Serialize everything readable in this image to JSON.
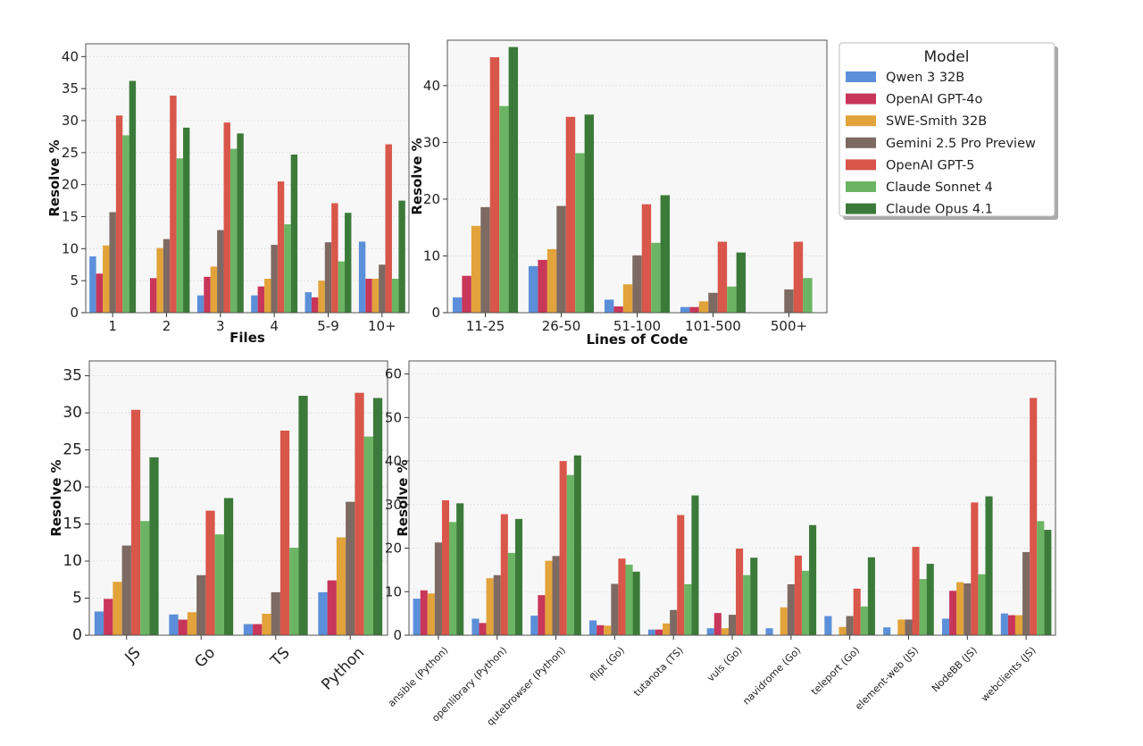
{
  "legend": {
    "title": "Model",
    "placement": "top-right",
    "series": [
      {
        "name": "Qwen 3 32B",
        "color": "#5b8fd9"
      },
      {
        "name": "OpenAI GPT-4o",
        "color": "#c8365a"
      },
      {
        "name": "SWE-Smith 32B",
        "color": "#e2a33a"
      },
      {
        "name": "Gemini 2.5 Pro Preview",
        "color": "#7d6a62"
      },
      {
        "name": "OpenAI GPT-5",
        "color": "#d9564a"
      },
      {
        "name": "Claude Sonnet 4",
        "color": "#6bb463"
      },
      {
        "name": "Claude Opus 4.1",
        "color": "#3c7a3a"
      }
    ]
  },
  "chart_data": [
    {
      "type": "bar",
      "xlabel": "Files",
      "ylabel": "Resolve %",
      "ylim": [
        0,
        42
      ],
      "yticks": [
        0,
        5,
        10,
        15,
        20,
        25,
        30,
        35,
        40
      ],
      "grid": true,
      "categories": [
        "1",
        "2",
        "3",
        "4",
        "5-9",
        "10+"
      ],
      "series": [
        {
          "name": "Qwen 3 32B",
          "values": [
            8.8,
            0,
            2.7,
            2.7,
            3.2,
            11.1
          ]
        },
        {
          "name": "OpenAI GPT-4o",
          "values": [
            6.1,
            5.4,
            5.6,
            4.1,
            2.4,
            5.3
          ]
        },
        {
          "name": "SWE-Smith 32B",
          "values": [
            10.5,
            10.1,
            7.2,
            5.3,
            5.0,
            5.3
          ]
        },
        {
          "name": "Gemini 2.5 Pro Preview",
          "values": [
            15.7,
            11.5,
            12.9,
            10.6,
            11.0,
            7.5
          ]
        },
        {
          "name": "OpenAI GPT-5",
          "values": [
            30.8,
            33.9,
            29.7,
            20.5,
            17.1,
            26.3
          ]
        },
        {
          "name": "Claude Sonnet 4",
          "values": [
            27.7,
            24.1,
            25.6,
            13.8,
            8.0,
            5.3
          ]
        },
        {
          "name": "Claude Opus 4.1",
          "values": [
            36.2,
            28.9,
            28.0,
            24.7,
            15.6,
            17.5
          ]
        }
      ]
    },
    {
      "type": "bar",
      "xlabel": "Lines of Code",
      "ylabel": "Resolve %",
      "ylim": [
        0,
        48
      ],
      "yticks": [
        0,
        10,
        20,
        30,
        40
      ],
      "grid": true,
      "categories": [
        "11-25",
        "26-50",
        "51-100",
        "101-500",
        "500+"
      ],
      "series": [
        {
          "name": "Qwen 3 32B",
          "values": [
            2.7,
            8.2,
            2.3,
            1.0,
            0
          ]
        },
        {
          "name": "OpenAI GPT-4o",
          "values": [
            6.5,
            9.3,
            1.1,
            1.0,
            0
          ]
        },
        {
          "name": "SWE-Smith 32B",
          "values": [
            15.3,
            11.2,
            5.0,
            2.0,
            0
          ]
        },
        {
          "name": "Gemini 2.5 Pro Preview",
          "values": [
            18.6,
            18.8,
            10.1,
            3.5,
            4.1
          ]
        },
        {
          "name": "OpenAI GPT-5",
          "values": [
            45.0,
            34.5,
            19.1,
            12.5,
            12.5
          ]
        },
        {
          "name": "Claude Sonnet 4",
          "values": [
            36.4,
            28.1,
            12.3,
            4.6,
            6.1
          ]
        },
        {
          "name": "Claude Opus 4.1",
          "values": [
            46.8,
            34.9,
            20.7,
            10.6,
            0
          ]
        }
      ]
    },
    {
      "type": "bar",
      "xlabel": "",
      "ylabel": "Resolve %",
      "ylim": [
        0,
        37
      ],
      "yticks": [
        0,
        5,
        10,
        15,
        20,
        25,
        30,
        35
      ],
      "grid": true,
      "categories": [
        "JS",
        "Go",
        "TS",
        "Python"
      ],
      "series": [
        {
          "name": "Qwen 3 32B",
          "values": [
            3.2,
            2.8,
            1.5,
            5.8
          ]
        },
        {
          "name": "OpenAI GPT-4o",
          "values": [
            4.9,
            2.1,
            1.5,
            7.4
          ]
        },
        {
          "name": "SWE-Smith 32B",
          "values": [
            7.2,
            3.1,
            2.9,
            13.2
          ]
        },
        {
          "name": "Gemini 2.5 Pro Preview",
          "values": [
            12.1,
            8.1,
            5.8,
            18.0
          ]
        },
        {
          "name": "OpenAI GPT-5",
          "values": [
            30.4,
            16.8,
            27.6,
            32.7
          ]
        },
        {
          "name": "Claude Sonnet 4",
          "values": [
            15.4,
            13.6,
            11.8,
            26.8
          ]
        },
        {
          "name": "Claude Opus 4.1",
          "values": [
            24.0,
            18.5,
            32.3,
            32.0
          ]
        }
      ]
    },
    {
      "type": "bar",
      "xlabel": "",
      "ylabel": "Resolve %",
      "ylim": [
        0,
        63
      ],
      "yticks": [
        0,
        10,
        20,
        30,
        40,
        50,
        60
      ],
      "grid": true,
      "categories": [
        "ansible (Python)",
        "openlibrary (Python)",
        "qutebrowser (Python)",
        "flipt (Go)",
        "tutanota (TS)",
        "vuls (Go)",
        "navidrome (Go)",
        "teleport (Go)",
        "element-web (JS)",
        "NodeBB (JS)",
        "webclients (JS)"
      ],
      "series": [
        {
          "name": "Qwen 3 32B",
          "values": [
            8.4,
            3.8,
            4.5,
            3.4,
            1.3,
            1.6,
            1.6,
            4.4,
            1.8,
            3.8,
            5.0
          ]
        },
        {
          "name": "OpenAI GPT-4o",
          "values": [
            10.3,
            2.8,
            9.2,
            2.3,
            1.3,
            5.1,
            0,
            0,
            0,
            10.2,
            4.6
          ]
        },
        {
          "name": "SWE-Smith 32B",
          "values": [
            9.6,
            13.1,
            17.1,
            2.2,
            2.7,
            1.6,
            6.4,
            1.9,
            3.6,
            12.2,
            4.6
          ]
        },
        {
          "name": "Gemini 2.5 Pro Preview",
          "values": [
            21.3,
            13.8,
            18.2,
            11.8,
            5.8,
            4.7,
            11.7,
            4.4,
            3.6,
            11.9,
            19.1
          ]
        },
        {
          "name": "OpenAI GPT-5",
          "values": [
            31.0,
            27.8,
            40.0,
            17.6,
            27.6,
            19.9,
            18.3,
            10.7,
            20.3,
            30.5,
            54.5
          ]
        },
        {
          "name": "Claude Sonnet 4",
          "values": [
            26.0,
            18.9,
            36.8,
            16.2,
            11.7,
            13.8,
            14.8,
            6.6,
            12.9,
            14.0,
            26.2
          ]
        },
        {
          "name": "Claude Opus 4.1",
          "values": [
            30.3,
            26.7,
            41.3,
            14.6,
            32.1,
            17.8,
            25.3,
            17.9,
            16.4,
            31.9,
            24.2
          ]
        }
      ]
    }
  ]
}
